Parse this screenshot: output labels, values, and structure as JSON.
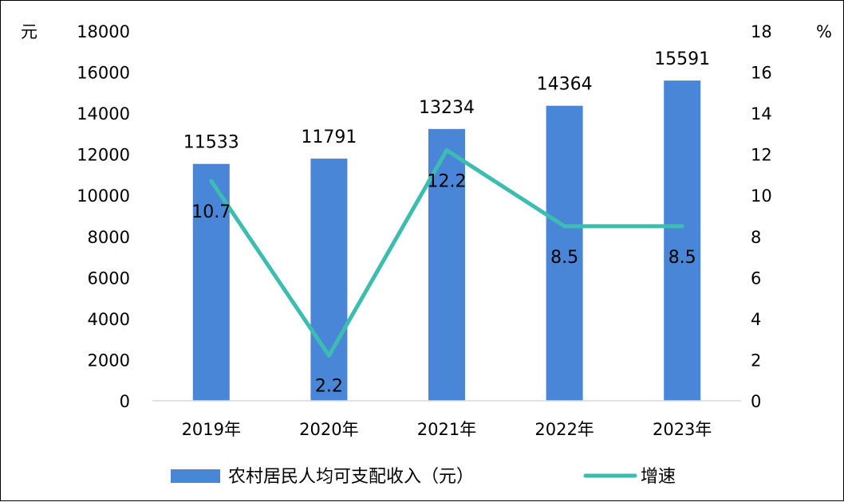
{
  "chart_data": {
    "type": "bar+line",
    "categories": [
      "2019年",
      "2020年",
      "2021年",
      "2022年",
      "2023年"
    ],
    "series": [
      {
        "name": "农村居民人均可支配收入（元）",
        "type": "bar",
        "axis": "left",
        "values": [
          11533,
          11791,
          13234,
          14364,
          15591
        ],
        "labels": [
          "11533",
          "11791",
          "13234",
          "14364",
          "15591"
        ],
        "color": "#4a86d8"
      },
      {
        "name": "增速",
        "type": "line",
        "axis": "right",
        "values": [
          10.7,
          2.2,
          12.2,
          8.5,
          8.5
        ],
        "labels": [
          "10.7",
          "2.2",
          "12.2",
          "8.5",
          "8.5"
        ],
        "color": "#3dbdb0"
      }
    ],
    "y_left": {
      "unit": "元",
      "range": [
        0,
        18000
      ],
      "ticks": [
        "0",
        "2000",
        "4000",
        "6000",
        "8000",
        "10000",
        "12000",
        "14000",
        "16000",
        "18000"
      ]
    },
    "y_right": {
      "unit": "%",
      "range": [
        0,
        18
      ],
      "ticks": [
        "0",
        "2",
        "4",
        "6",
        "8",
        "10",
        "12",
        "14",
        "16",
        "18"
      ]
    },
    "grid": false,
    "legend_position": "bottom"
  }
}
